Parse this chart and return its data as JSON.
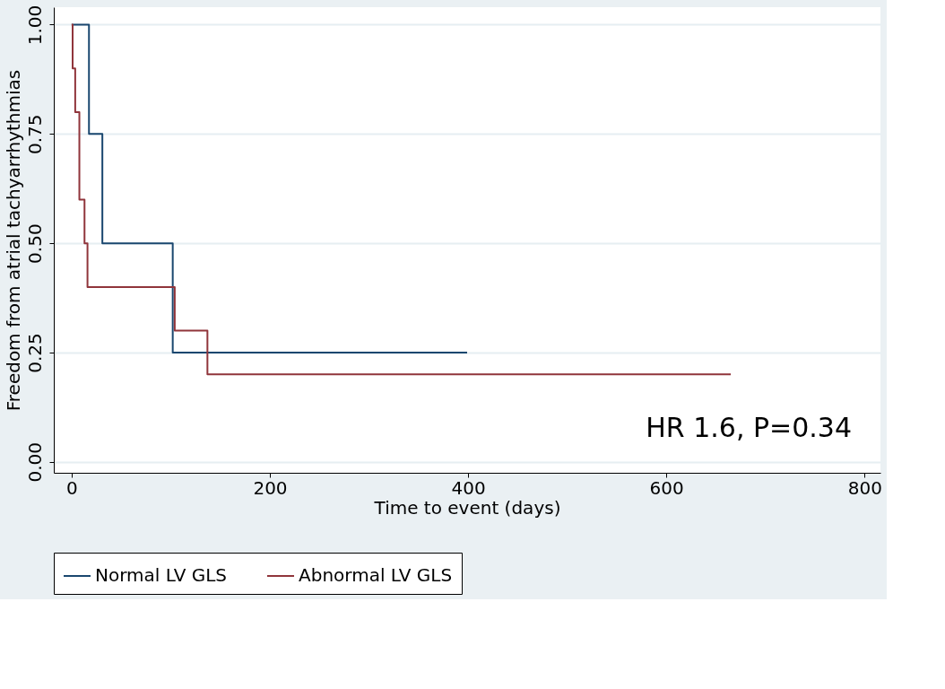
{
  "chart_data": {
    "type": "step",
    "xlabel": "Time to event (days)",
    "ylabel": "Freedom from atrial tachyarrhythmias",
    "xlim": [
      -18,
      816
    ],
    "ylim": [
      -0.025,
      1.04
    ],
    "xticks": [
      0,
      200,
      400,
      600,
      800
    ],
    "yticks": [
      {
        "value": 0,
        "label": "0.00"
      },
      {
        "value": 0.25,
        "label": "0.25"
      },
      {
        "value": 0.5,
        "label": "0.50"
      },
      {
        "value": 0.75,
        "label": "0.75"
      },
      {
        "value": 1,
        "label": "1.00"
      }
    ],
    "grid": "y",
    "legend": "bottom",
    "annotations": [
      "HR 1.6, P=0.34"
    ],
    "series": [
      {
        "name": "Normal LV GLS",
        "color": "#1a476f",
        "x": [
          0,
          17.5,
          31,
          102,
          399
        ],
        "values": [
          1,
          0.75,
          0.5,
          0.25,
          0.25
        ]
      },
      {
        "name": "Abnormal LV GLS",
        "color": "#90353b",
        "x": [
          0,
          1,
          3.6,
          7.8,
          13,
          16,
          104,
          137,
          665
        ],
        "values": [
          1,
          0.9,
          0.8,
          0.6,
          0.5,
          0.4,
          0.3,
          0.2,
          0.2
        ]
      }
    ]
  }
}
